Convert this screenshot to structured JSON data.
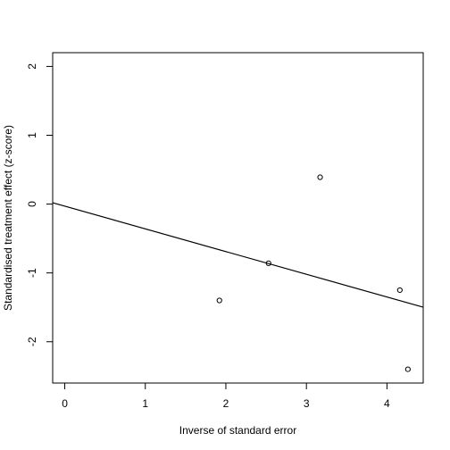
{
  "chart_data": {
    "type": "scatter",
    "title": "",
    "xlabel": "Inverse of standard error",
    "ylabel": "Standardised treatment effect (z-score)",
    "xlim": [
      -0.15,
      4.45
    ],
    "ylim": [
      -2.6,
      2.2
    ],
    "xticks": [
      0,
      1,
      2,
      3,
      4
    ],
    "yticks": [
      -2,
      -1,
      0,
      1,
      2
    ],
    "grid": false,
    "points": [
      {
        "x": 1.92,
        "y": -1.4
      },
      {
        "x": 2.53,
        "y": -0.86
      },
      {
        "x": 3.17,
        "y": 0.39
      },
      {
        "x": 4.16,
        "y": -1.25
      },
      {
        "x": 4.26,
        "y": -2.4
      }
    ],
    "regression_line": {
      "intercept": -0.03,
      "slope": -0.33
    }
  }
}
